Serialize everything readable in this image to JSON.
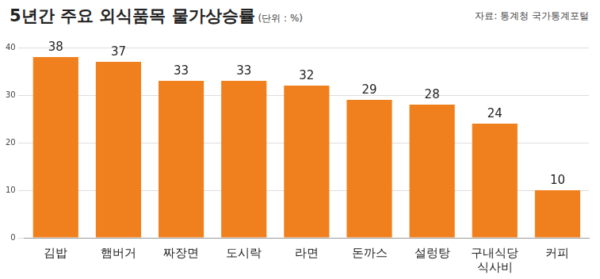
{
  "chart_data": {
    "type": "bar",
    "title": "5년간 주요 외식품목 물가상승률",
    "subtitle": "(단위 : %)",
    "annotations": [
      "자료: 통계청 국가통계포털"
    ],
    "categories": [
      "김밥",
      "햄버거",
      "짜장면",
      "도시락",
      "라면",
      "돈까스",
      "설렁탕",
      "구내식당 식사비",
      "커피"
    ],
    "values": [
      38,
      37,
      33,
      33,
      32,
      29,
      28,
      24,
      10
    ],
    "color": "#f0801e",
    "ylim": [
      0,
      40
    ],
    "yticks": [
      0,
      10,
      20,
      30,
      40
    ],
    "grid": true,
    "data_labels": true
  }
}
